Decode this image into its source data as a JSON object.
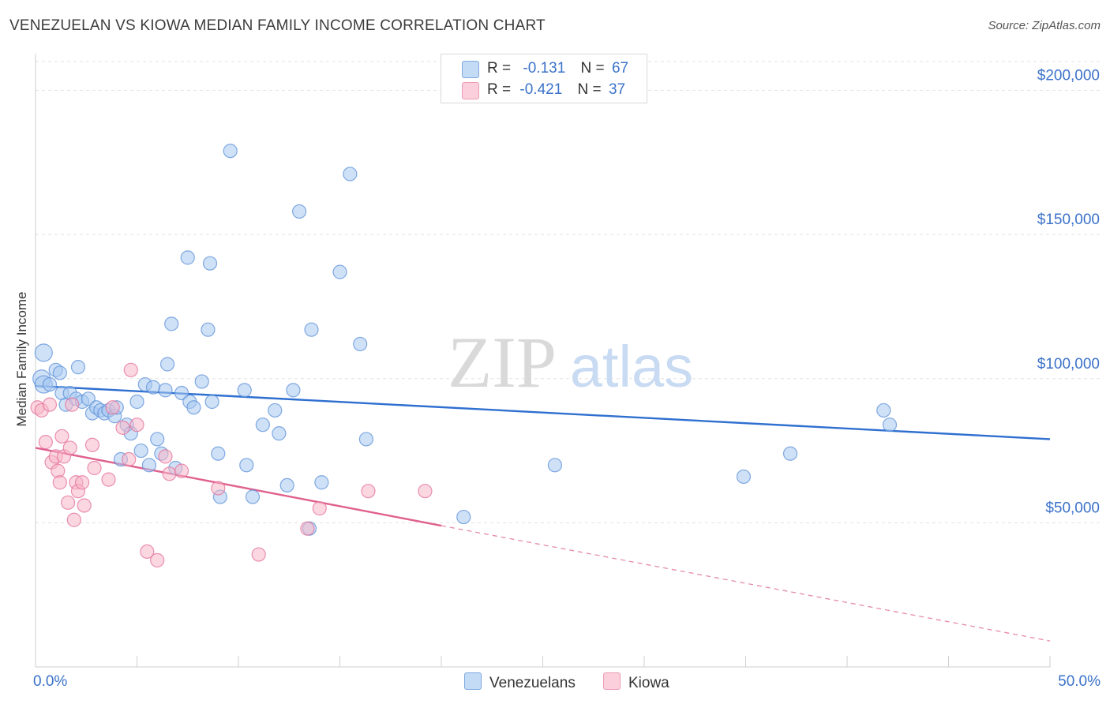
{
  "title": "VENEZUELAN VS KIOWA MEDIAN FAMILY INCOME CORRELATION CHART",
  "source": "Source: ZipAtlas.com",
  "watermark": {
    "zip": "ZIP",
    "atlas": "atlas"
  },
  "legend_top": [
    {
      "r_label": "R =",
      "r_value": "-0.131",
      "n_label": "N =",
      "n_value": "67",
      "color": "#a8c8f0"
    },
    {
      "r_label": "R =",
      "r_value": "-0.421",
      "n_label": "N =",
      "n_value": "37",
      "color": "#f7b6c8"
    }
  ],
  "legend_bottom": [
    {
      "label": "Venezuelans",
      "color": "#a8c8f0"
    },
    {
      "label": "Kiowa",
      "color": "#f7b6c8"
    }
  ],
  "chart_data": {
    "type": "scatter",
    "title": "VENEZUELAN VS KIOWA MEDIAN FAMILY INCOME CORRELATION CHART",
    "xlabel": "",
    "ylabel": "Median Family Income",
    "xlim": [
      0,
      50
    ],
    "ylim": [
      0,
      210000
    ],
    "x_tick_labels": [
      "0.0%",
      "50.0%"
    ],
    "y_ticks": [
      50000,
      100000,
      150000,
      200000
    ],
    "y_tick_labels": [
      "$50,000",
      "$100,000",
      "$150,000",
      "$200,000"
    ],
    "grid": true,
    "legend_position": "top-center",
    "series": [
      {
        "name": "Venezuelans",
        "color": "#5b8fd8",
        "fill": "#a8c8f0",
        "trend": {
          "x": [
            0,
            50
          ],
          "y": [
            97500,
            79000
          ],
          "style": "solid"
        },
        "points": [
          [
            0.3,
            100000
          ],
          [
            0.4,
            109000
          ],
          [
            0.4,
            98000
          ],
          [
            0.7,
            98000
          ],
          [
            1.0,
            103000
          ],
          [
            1.2,
            102000
          ],
          [
            1.3,
            95000
          ],
          [
            1.5,
            91000
          ],
          [
            1.7,
            95000
          ],
          [
            2.0,
            93000
          ],
          [
            2.1,
            104000
          ],
          [
            2.3,
            92000
          ],
          [
            2.6,
            93000
          ],
          [
            2.8,
            88000
          ],
          [
            3.0,
            90000
          ],
          [
            3.2,
            89000
          ],
          [
            3.4,
            88000
          ],
          [
            3.6,
            89000
          ],
          [
            3.9,
            87000
          ],
          [
            4.0,
            90000
          ],
          [
            4.2,
            72000
          ],
          [
            4.5,
            84000
          ],
          [
            4.7,
            81000
          ],
          [
            5.0,
            92000
          ],
          [
            5.2,
            75000
          ],
          [
            5.4,
            98000
          ],
          [
            5.6,
            70000
          ],
          [
            5.8,
            97000
          ],
          [
            6.0,
            79000
          ],
          [
            6.2,
            74000
          ],
          [
            6.4,
            96000
          ],
          [
            6.5,
            105000
          ],
          [
            6.7,
            119000
          ],
          [
            6.9,
            69000
          ],
          [
            7.2,
            95000
          ],
          [
            7.5,
            142000
          ],
          [
            7.6,
            92000
          ],
          [
            7.8,
            90000
          ],
          [
            8.2,
            99000
          ],
          [
            8.5,
            117000
          ],
          [
            8.6,
            140000
          ],
          [
            8.7,
            92000
          ],
          [
            9.0,
            74000
          ],
          [
            9.1,
            59000
          ],
          [
            9.6,
            179000
          ],
          [
            10.3,
            96000
          ],
          [
            10.4,
            70000
          ],
          [
            10.7,
            59000
          ],
          [
            11.2,
            84000
          ],
          [
            11.8,
            89000
          ],
          [
            12.0,
            81000
          ],
          [
            12.4,
            63000
          ],
          [
            12.7,
            96000
          ],
          [
            13.0,
            158000
          ],
          [
            13.6,
            117000
          ],
          [
            14.1,
            64000
          ],
          [
            15.0,
            137000
          ],
          [
            15.5,
            171000
          ],
          [
            16.0,
            112000
          ],
          [
            16.3,
            79000
          ],
          [
            21.1,
            52000
          ],
          [
            25.6,
            70000
          ],
          [
            34.9,
            66000
          ],
          [
            37.2,
            74000
          ],
          [
            41.8,
            89000
          ],
          [
            42.1,
            84000
          ],
          [
            13.5,
            48000
          ]
        ]
      },
      {
        "name": "Kiowa",
        "color": "#e36f9a",
        "fill": "#f7b6c8",
        "trend": {
          "x": [
            0,
            20.0
          ],
          "y": [
            76000,
            49000
          ],
          "style": "solid"
        },
        "trend_extension": {
          "x": [
            20.0,
            50
          ],
          "y": [
            49000,
            9000
          ],
          "style": "dashed"
        },
        "points": [
          [
            0.1,
            90000
          ],
          [
            0.3,
            89000
          ],
          [
            0.5,
            78000
          ],
          [
            0.7,
            91000
          ],
          [
            0.8,
            71000
          ],
          [
            1.0,
            73000
          ],
          [
            1.1,
            68000
          ],
          [
            1.2,
            64000
          ],
          [
            1.3,
            80000
          ],
          [
            1.4,
            73000
          ],
          [
            1.6,
            57000
          ],
          [
            1.7,
            76000
          ],
          [
            1.8,
            91000
          ],
          [
            1.9,
            51000
          ],
          [
            2.0,
            64000
          ],
          [
            2.1,
            61000
          ],
          [
            2.3,
            64000
          ],
          [
            2.4,
            56000
          ],
          [
            2.8,
            77000
          ],
          [
            2.9,
            69000
          ],
          [
            3.6,
            65000
          ],
          [
            3.8,
            90000
          ],
          [
            4.3,
            83000
          ],
          [
            4.6,
            72000
          ],
          [
            4.7,
            103000
          ],
          [
            5.0,
            84000
          ],
          [
            5.5,
            40000
          ],
          [
            6.0,
            37000
          ],
          [
            6.4,
            73000
          ],
          [
            6.6,
            67000
          ],
          [
            7.2,
            68000
          ],
          [
            9.0,
            62000
          ],
          [
            11.0,
            39000
          ],
          [
            13.4,
            48000
          ],
          [
            14.0,
            55000
          ],
          [
            16.4,
            61000
          ],
          [
            19.2,
            61000
          ]
        ]
      }
    ]
  }
}
